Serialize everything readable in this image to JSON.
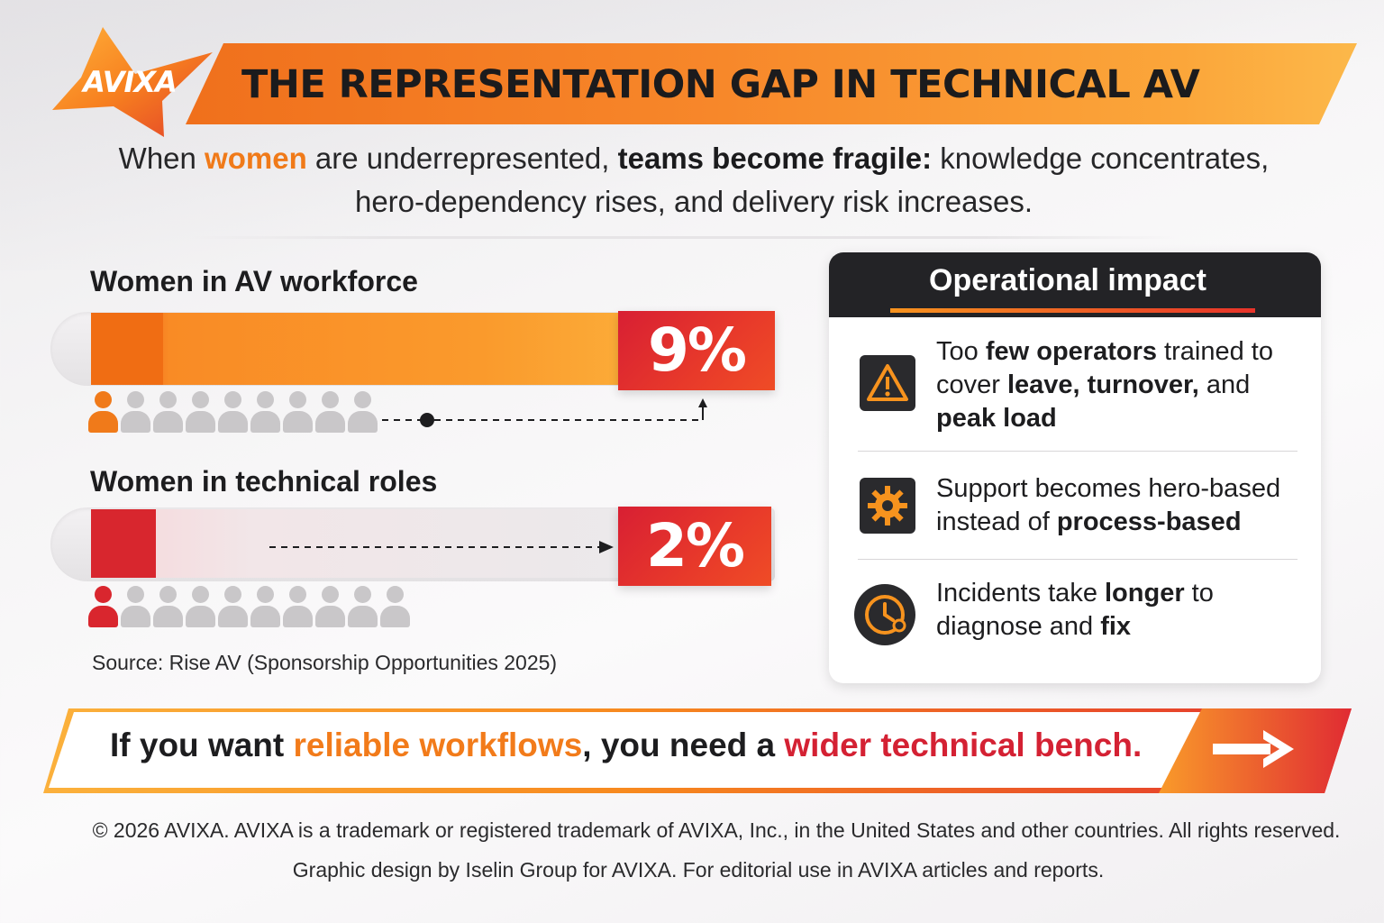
{
  "header": {
    "logo_text": "AVIXA",
    "title": "THE REPRESENTATION GAP IN TECHNICAL AV"
  },
  "subtitle": {
    "part1": "When ",
    "highlight": "women",
    "part2": " are underrepresented, ",
    "bold": "teams become fragile:",
    "part3": " knowledge concentrates, hero-dependency rises, and delivery risk increases."
  },
  "stats": [
    {
      "label": "Women in AV workforce",
      "value_text": "9%",
      "value": 9,
      "people_total": 9,
      "people_highlighted": 1,
      "color": "#f07a1a"
    },
    {
      "label": "Women in technical roles",
      "value_text": "2%",
      "value": 2,
      "people_total": 10,
      "people_highlighted": 1,
      "color": "#d9262e"
    }
  ],
  "source": "Source: Rise AV (Sponsorship Opportunities 2025)",
  "impact": {
    "title": "Operational impact",
    "items": [
      {
        "icon": "warning-icon",
        "segments": [
          [
            "Too ",
            false
          ],
          [
            "few operators",
            true
          ],
          [
            " trained to cover ",
            false
          ],
          [
            "leave, turnover,",
            true
          ],
          [
            " and ",
            false
          ],
          [
            "peak load",
            true
          ]
        ]
      },
      {
        "icon": "gear-icon",
        "segments": [
          [
            "Support becomes hero-based instead of ",
            false
          ],
          [
            "process-based",
            true
          ]
        ]
      },
      {
        "icon": "clock-icon",
        "segments": [
          [
            "Incidents take ",
            false
          ],
          [
            "longer",
            true
          ],
          [
            " to diagnose and ",
            false
          ],
          [
            "fix",
            true
          ]
        ]
      }
    ]
  },
  "callout": {
    "part1": "If you want ",
    "orange": "reliable workflows",
    "part2": ", you need a ",
    "red": "wider technical bench.",
    "icon": "arrow-right-icon"
  },
  "footer": {
    "line1": "© 2026 AVIXA. AVIXA is a trademark or registered trademark of AVIXA, Inc., in the United States and other countries. All rights reserved.",
    "line2": "Graphic design by Iselin Group for AVIXA. For editorial use in AVIXA articles and reports."
  },
  "colors": {
    "orange": "#f07a1a",
    "red": "#d9262e",
    "dark": "#232326"
  }
}
